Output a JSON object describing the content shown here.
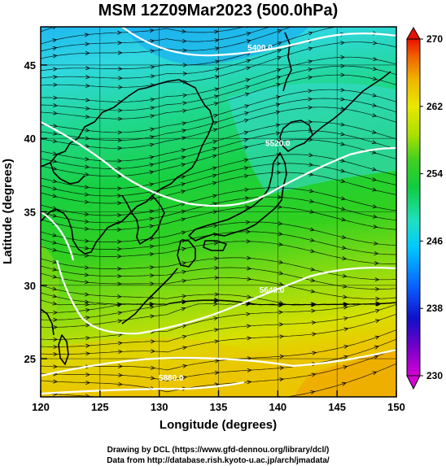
{
  "title": "MSM 12Z09Mar2023 (500.0hPa)",
  "xlabel": "Longitude (degrees)",
  "ylabel": "Latitude  (degrees)",
  "x_ticks": [
    "120",
    "125",
    "130",
    "135",
    "140",
    "145",
    "150"
  ],
  "y_ticks": [
    "25",
    "30",
    "35",
    "40",
    "45"
  ],
  "x_range": [
    120,
    150
  ],
  "y_range": [
    22.4,
    47.6
  ],
  "colorbar": {
    "ticks": [
      "230",
      "238",
      "246",
      "254",
      "262",
      "270"
    ],
    "range": [
      230,
      270
    ],
    "colors": [
      "#d400d4",
      "#7a00c8",
      "#1010c8",
      "#0a64ff",
      "#00c8ff",
      "#20e0c0",
      "#10cc40",
      "#40d020",
      "#b0e000",
      "#e8e800",
      "#f0b400",
      "#f06000",
      "#e81000"
    ]
  },
  "contours": [
    {
      "label": "5400.0",
      "label_lon": 138.5,
      "label_lat": 46.0
    },
    {
      "label": "5520.0",
      "label_lon": 140.0,
      "label_lat": 39.5
    },
    {
      "label": "5640.0",
      "label_lon": 139.5,
      "label_lat": 29.5
    },
    {
      "label": "5880.0",
      "label_lon": 131.0,
      "label_lat": 23.5
    }
  ],
  "credits": {
    "line1": "Drawing by DCL (https://www.gfd-dennou.org/library/dcl/)",
    "line2": "Data from http://database.rish.kyoto-u.ac.jp/arch/jmadata/"
  }
}
